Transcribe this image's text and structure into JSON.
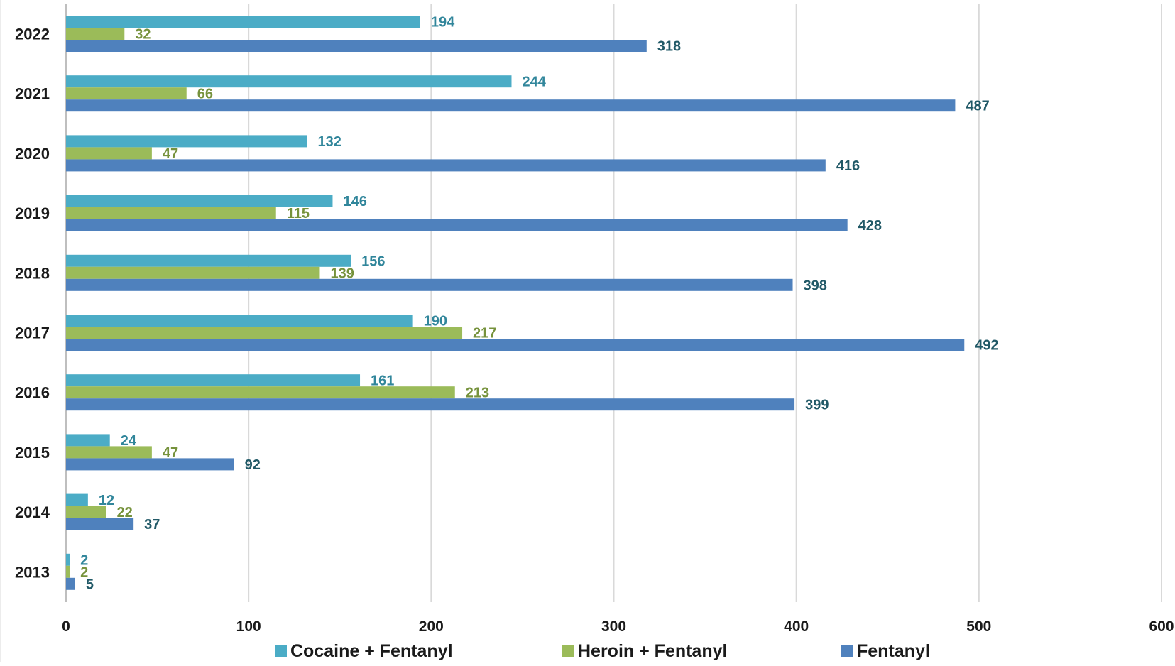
{
  "chart_data": {
    "type": "bar",
    "orientation": "horizontal",
    "categories": [
      "2022",
      "2021",
      "2020",
      "2019",
      "2018",
      "2017",
      "2016",
      "2015",
      "2014",
      "2013"
    ],
    "series": [
      {
        "name": "Cocaine + Fentanyl",
        "color": "#4BACC6",
        "label_color": "#31869B",
        "values": [
          194,
          244,
          132,
          146,
          156,
          190,
          161,
          24,
          12,
          2
        ]
      },
      {
        "name": "Heroin + Fentanyl",
        "color": "#9BBB59",
        "label_color": "#76923C",
        "values": [
          32,
          66,
          47,
          115,
          139,
          217,
          213,
          47,
          22,
          2
        ]
      },
      {
        "name": "Fentanyl",
        "color": "#4F81BD",
        "label_color": "#215967",
        "values": [
          318,
          487,
          416,
          428,
          398,
          492,
          399,
          92,
          37,
          5
        ]
      }
    ],
    "xlim": [
      0,
      600
    ],
    "x_ticks": [
      "0",
      "100",
      "200",
      "300",
      "400",
      "500",
      "600"
    ],
    "grid": "vertical",
    "legend_position": "bottom",
    "title": "",
    "xlabel": "",
    "ylabel": ""
  }
}
